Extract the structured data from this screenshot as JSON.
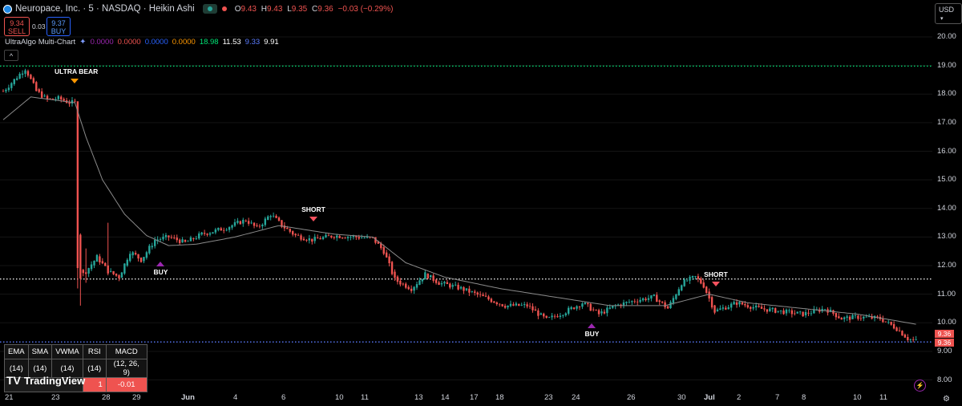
{
  "header": {
    "symbol_title": "Neuropace, Inc. · 5 · NASDAQ · Heikin Ashi",
    "o_label": "O",
    "o_value": "9.43",
    "h_label": "H",
    "h_value": "9.43",
    "l_label": "L",
    "l_value": "9.35",
    "c_label": "C",
    "c_value": "9.36",
    "change": "−0.03 (−0.29%)",
    "sell_price": "9.34",
    "sell_label": "SELL",
    "spread": "0.03",
    "buy_price": "9.37",
    "buy_label": "BUY",
    "indicator_name": "UltraAlgo Multi-Chart",
    "indicator_values": [
      "0.0000",
      "0.0000",
      "0.0000",
      "0.0000",
      "18.98",
      "11.53",
      "9.33",
      "9.91"
    ],
    "collapse_glyph": "^",
    "currency": "USD"
  },
  "signals": [
    {
      "label": "ULTRA BEAR",
      "color": "#ff9800"
    },
    {
      "label": "BUY",
      "color": "#9c27b0"
    },
    {
      "label": "SHORT",
      "color": "#f7525f"
    },
    {
      "label": "BUY",
      "color": "#9c27b0"
    },
    {
      "label": "SHORT",
      "color": "#f7525f"
    }
  ],
  "indicator_table": {
    "headers": [
      "EMA",
      "SMA",
      "VWMA",
      "RSI",
      "MACD"
    ],
    "params": [
      "(14)",
      "(14)",
      "(14)",
      "(14)",
      "(12, 26, 9)"
    ],
    "rsi_value": "1",
    "macd_value": "-0.01"
  },
  "watermark": "TradingView",
  "price_tags": [
    "9.36",
    "9.36"
  ],
  "colors": {
    "up": "#26a69a",
    "down": "#ef5350",
    "ma": "#8a8a8a",
    "green_line": "#00e676",
    "white_line": "#ffffff",
    "blue_line": "#5b7cff"
  },
  "chart_data": {
    "type": "candlestick",
    "title": "Neuropace, Inc. · 5 · NASDAQ · Heikin Ashi",
    "ylim": [
      7.8,
      20.5
    ],
    "y_ticks": [
      "8.00",
      "9.00",
      "10.00",
      "11.00",
      "12.00",
      "13.00",
      "14.00",
      "15.00",
      "16.00",
      "17.00",
      "18.00",
      "19.00",
      "20.00"
    ],
    "x_ticks": [
      "21",
      "23",
      "28",
      "29",
      "Jun",
      "4",
      "6",
      "10",
      "11",
      "13",
      "14",
      "17",
      "18",
      "23",
      "24",
      "26",
      "30",
      "Jul",
      "2",
      "7",
      "8",
      "10",
      "11"
    ],
    "horizontal_lines": [
      {
        "value": 18.98,
        "style": "dotted",
        "color": "#00e676"
      },
      {
        "value": 11.53,
        "style": "dotted",
        "color": "#ffffff"
      },
      {
        "value": 9.33,
        "style": "dotted",
        "color": "#5b7cff"
      }
    ],
    "price_path": [
      {
        "i": 0,
        "p": 18.1
      },
      {
        "i": 4,
        "p": 18.5
      },
      {
        "i": 8,
        "p": 18.9
      },
      {
        "i": 12,
        "p": 18.1
      },
      {
        "i": 16,
        "p": 17.8
      },
      {
        "i": 20,
        "p": 17.85
      },
      {
        "i": 24,
        "p": 17.7
      },
      {
        "i": 26,
        "p": 17.7
      },
      {
        "i": 27,
        "p": 12.0
      },
      {
        "i": 28,
        "p": 11.6
      },
      {
        "i": 30,
        "p": 11.8
      },
      {
        "i": 34,
        "p": 12.3
      },
      {
        "i": 38,
        "p": 11.8
      },
      {
        "i": 42,
        "p": 11.6
      },
      {
        "i": 46,
        "p": 12.5
      },
      {
        "i": 50,
        "p": 12.2
      },
      {
        "i": 55,
        "p": 12.9
      },
      {
        "i": 60,
        "p": 13.0
      },
      {
        "i": 66,
        "p": 12.8
      },
      {
        "i": 72,
        "p": 13.1
      },
      {
        "i": 80,
        "p": 13.3
      },
      {
        "i": 88,
        "p": 13.6
      },
      {
        "i": 92,
        "p": 13.3
      },
      {
        "i": 97,
        "p": 13.8
      },
      {
        "i": 101,
        "p": 13.4
      },
      {
        "i": 106,
        "p": 13.05
      },
      {
        "i": 112,
        "p": 12.9
      },
      {
        "i": 120,
        "p": 13.05
      },
      {
        "i": 128,
        "p": 13.0
      },
      {
        "i": 134,
        "p": 12.95
      },
      {
        "i": 138,
        "p": 12.5
      },
      {
        "i": 142,
        "p": 11.5
      },
      {
        "i": 148,
        "p": 11.2
      },
      {
        "i": 153,
        "p": 11.7
      },
      {
        "i": 158,
        "p": 11.4
      },
      {
        "i": 166,
        "p": 11.2
      },
      {
        "i": 174,
        "p": 10.9
      },
      {
        "i": 182,
        "p": 10.6
      },
      {
        "i": 190,
        "p": 10.6
      },
      {
        "i": 197,
        "p": 10.1
      },
      {
        "i": 204,
        "p": 10.4
      },
      {
        "i": 210,
        "p": 10.7
      },
      {
        "i": 216,
        "p": 10.3
      },
      {
        "i": 222,
        "p": 10.6
      },
      {
        "i": 230,
        "p": 10.8
      },
      {
        "i": 236,
        "p": 10.9
      },
      {
        "i": 241,
        "p": 10.5
      },
      {
        "i": 246,
        "p": 11.4
      },
      {
        "i": 251,
        "p": 11.6
      },
      {
        "i": 254,
        "p": 11.3
      },
      {
        "i": 258,
        "p": 10.4
      },
      {
        "i": 266,
        "p": 10.7
      },
      {
        "i": 274,
        "p": 10.5
      },
      {
        "i": 282,
        "p": 10.4
      },
      {
        "i": 290,
        "p": 10.3
      },
      {
        "i": 298,
        "p": 10.5
      },
      {
        "i": 304,
        "p": 10.15
      },
      {
        "i": 310,
        "p": 10.2
      },
      {
        "i": 318,
        "p": 10.15
      },
      {
        "i": 324,
        "p": 9.8
      },
      {
        "i": 328,
        "p": 9.45
      },
      {
        "i": 331,
        "p": 9.36
      }
    ],
    "moving_average": [
      {
        "i": 0,
        "p": 17.1
      },
      {
        "i": 10,
        "p": 17.9
      },
      {
        "i": 26,
        "p": 17.7
      },
      {
        "i": 30,
        "p": 16.5
      },
      {
        "i": 36,
        "p": 15.0
      },
      {
        "i": 44,
        "p": 13.8
      },
      {
        "i": 52,
        "p": 13.05
      },
      {
        "i": 60,
        "p": 12.7
      },
      {
        "i": 70,
        "p": 12.75
      },
      {
        "i": 84,
        "p": 13.0
      },
      {
        "i": 100,
        "p": 13.4
      },
      {
        "i": 120,
        "p": 13.1
      },
      {
        "i": 134,
        "p": 13.0
      },
      {
        "i": 146,
        "p": 12.1
      },
      {
        "i": 160,
        "p": 11.6
      },
      {
        "i": 180,
        "p": 11.2
      },
      {
        "i": 200,
        "p": 10.9
      },
      {
        "i": 220,
        "p": 10.6
      },
      {
        "i": 240,
        "p": 10.6
      },
      {
        "i": 256,
        "p": 11.0
      },
      {
        "i": 270,
        "p": 10.7
      },
      {
        "i": 290,
        "p": 10.5
      },
      {
        "i": 310,
        "p": 10.3
      },
      {
        "i": 331,
        "p": 9.95
      }
    ]
  }
}
